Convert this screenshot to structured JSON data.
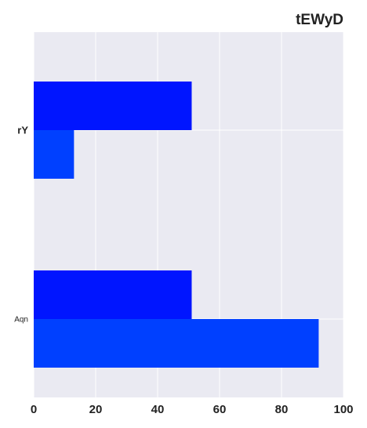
{
  "chart_data": {
    "type": "bar",
    "orientation": "horizontal",
    "title": "tEWyD",
    "xlabel": "",
    "ylabel": "",
    "categories": [
      "rY",
      "Aqn"
    ],
    "series": [
      {
        "values": [
          51,
          51
        ],
        "color": "#0015ff"
      },
      {
        "values": [
          13,
          92
        ],
        "color": "#0040ff"
      }
    ],
    "xlim": [
      0,
      100
    ],
    "xticks": [
      0,
      20,
      40,
      60,
      80,
      100
    ],
    "grid": true,
    "legend": "none",
    "background": "#eaeaf2"
  }
}
